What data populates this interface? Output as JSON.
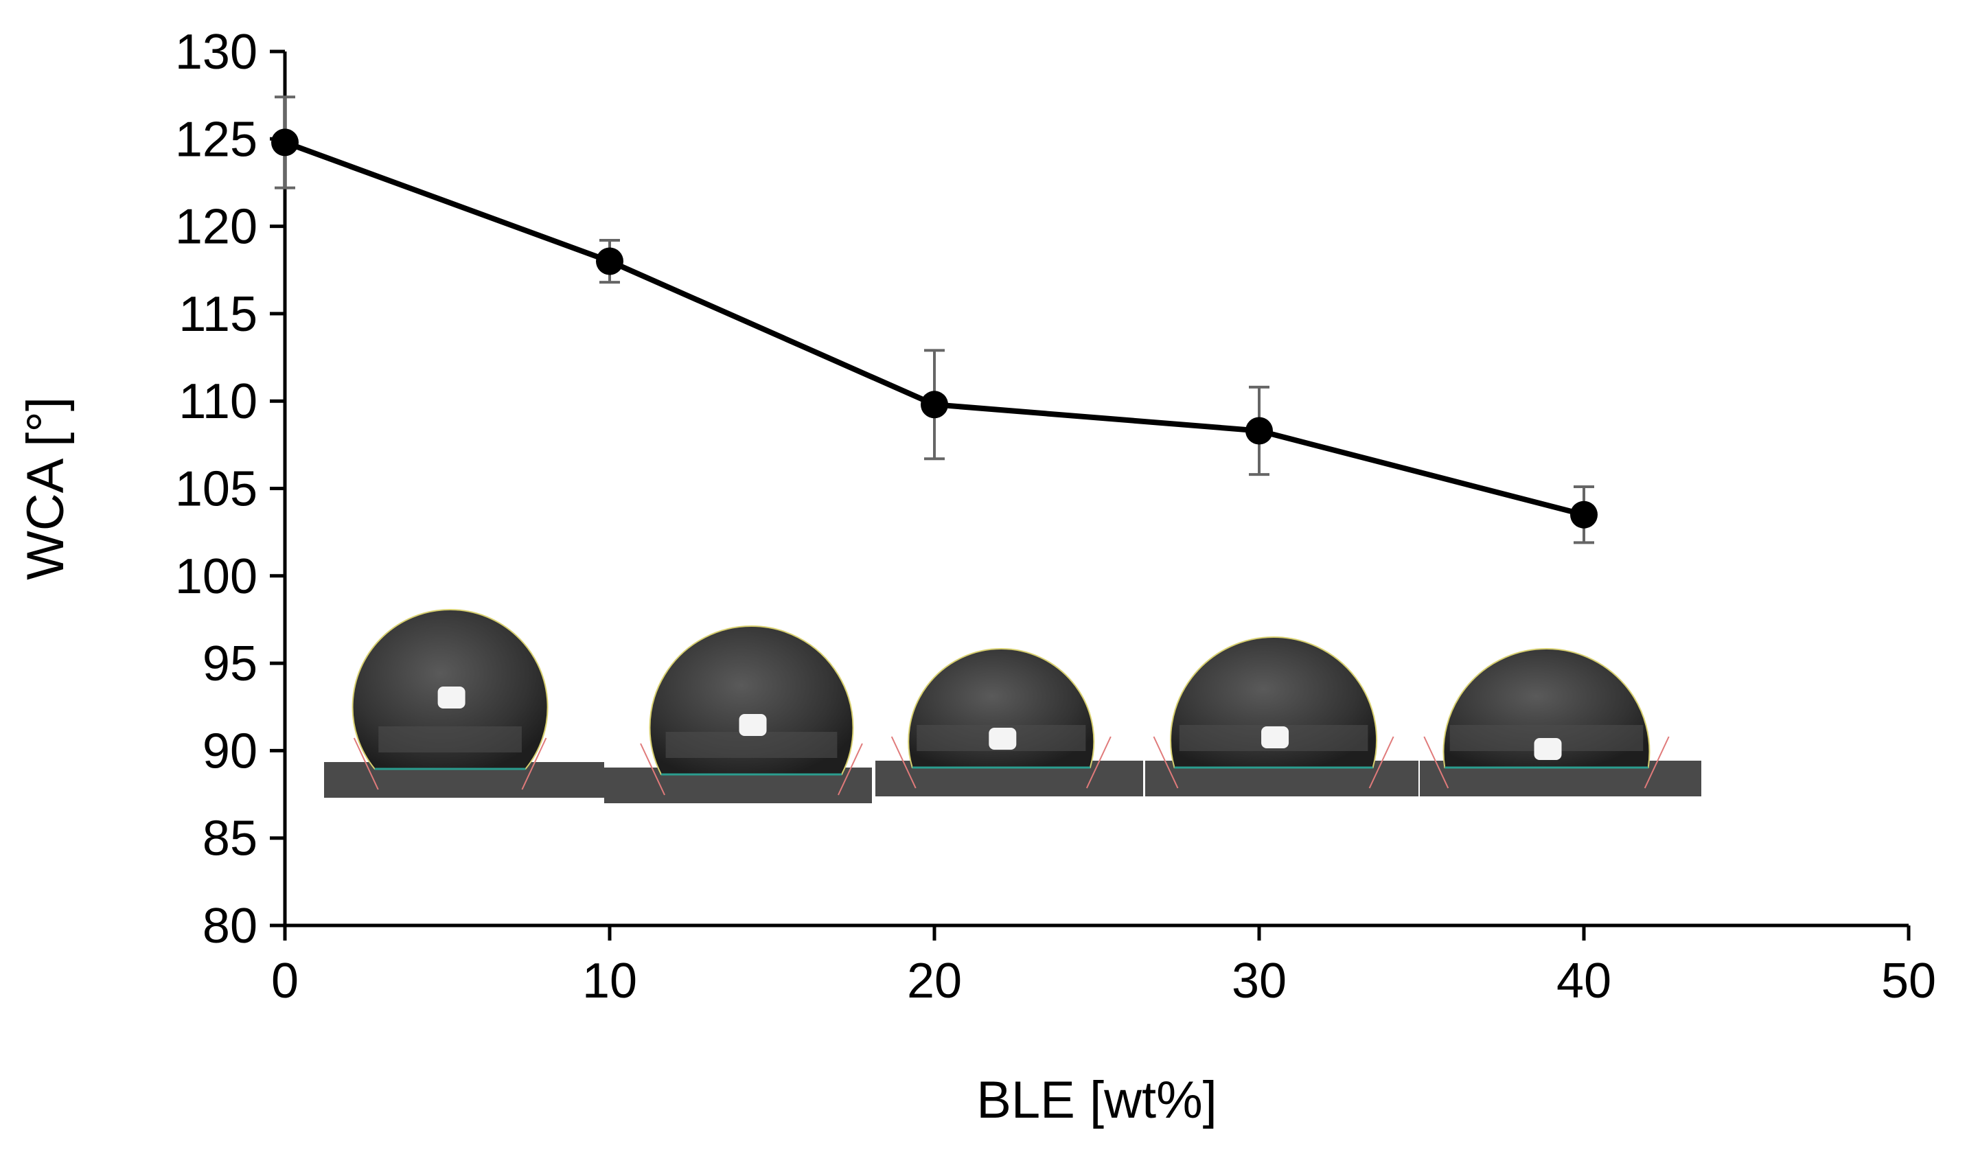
{
  "chart_data": {
    "type": "line",
    "title": "",
    "xlabel": "BLE [wt%]",
    "ylabel": "WCA [°]",
    "xlim": [
      0,
      50
    ],
    "ylim": [
      80,
      130
    ],
    "xticks": [
      0,
      10,
      20,
      30,
      40,
      50
    ],
    "yticks": [
      80,
      85,
      90,
      95,
      100,
      105,
      110,
      115,
      120,
      125,
      130
    ],
    "grid": false,
    "series": [
      {
        "name": "WCA",
        "x": [
          0,
          10,
          20,
          30,
          40
        ],
        "y": [
          124.8,
          118.0,
          109.8,
          108.3,
          103.5
        ],
        "error": [
          2.6,
          1.2,
          3.1,
          2.5,
          1.6
        ],
        "color": "#000000",
        "error_color": "#666666"
      }
    ],
    "inset_images": {
      "description": "droplet photos",
      "count": 5,
      "drop_color": "#333333",
      "substrate_color": "#4a4a4a",
      "baseline_color": "#2a9d8f",
      "tangent_color": "#e07a7a",
      "contour_color": "#d8d070"
    }
  }
}
